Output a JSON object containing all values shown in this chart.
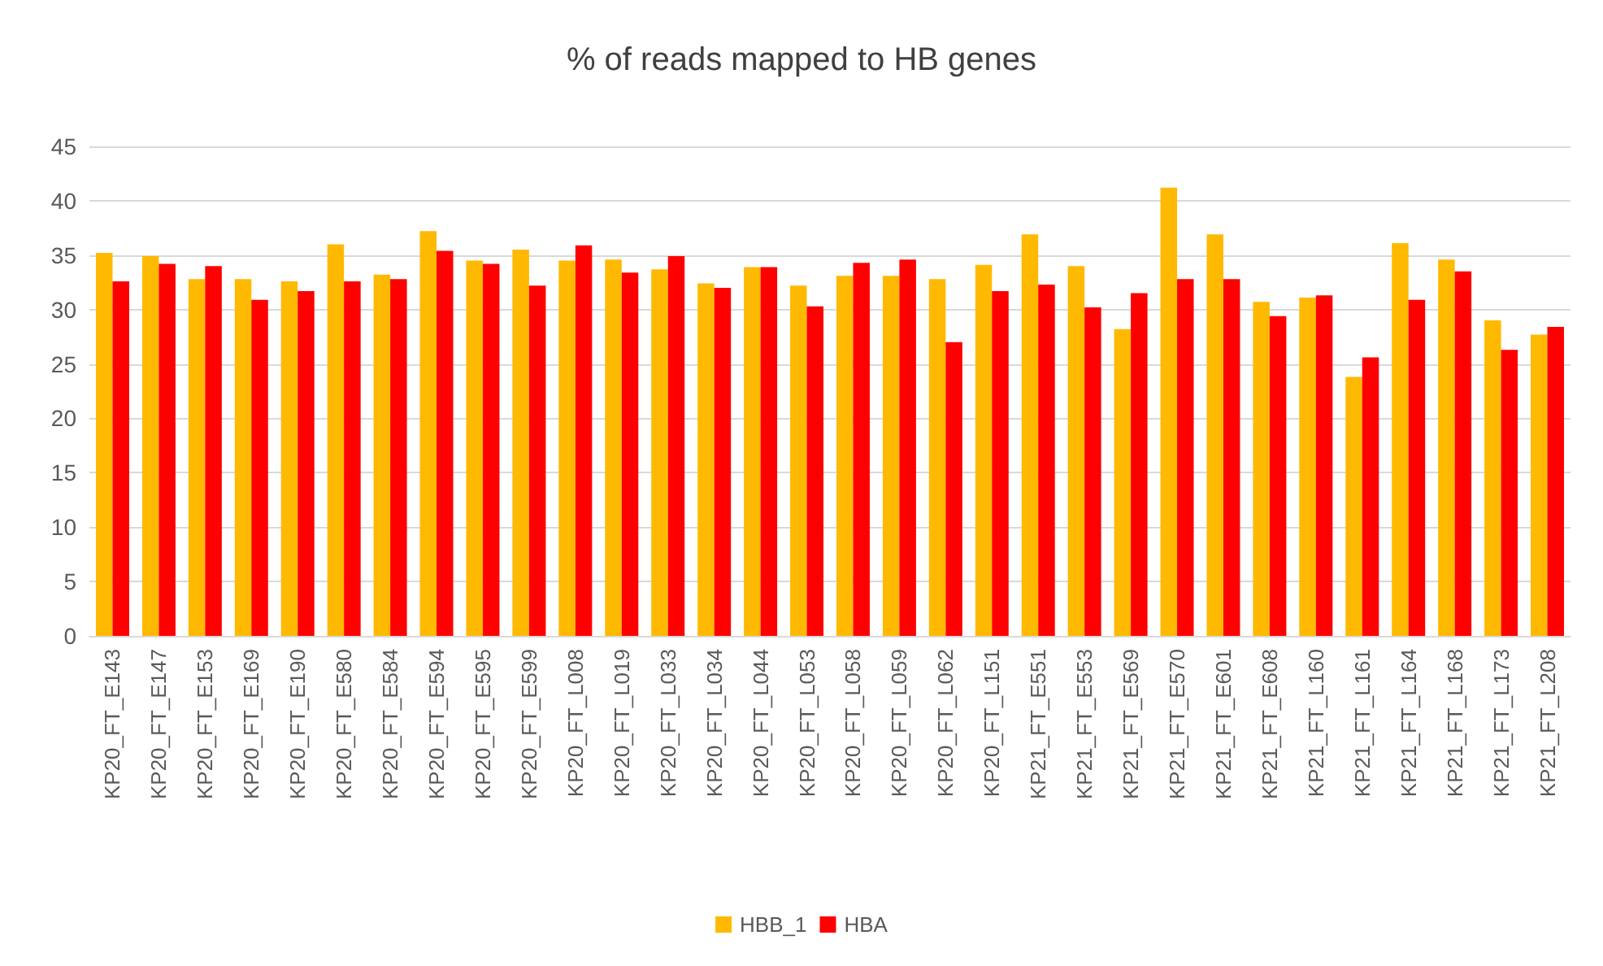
{
  "chart_data": {
    "type": "bar",
    "title": "% of reads mapped to HB genes",
    "categories": [
      "KP20_FT_E143",
      "KP20_FT_E147",
      "KP20_FT_E153",
      "KP20_FT_E169",
      "KP20_FT_E190",
      "KP20_FT_E580",
      "KP20_FT_E584",
      "KP20_FT_E594",
      "KP20_FT_E595",
      "KP20_FT_E599",
      "KP20_FT_L008",
      "KP20_FT_L019",
      "KP20_FT_L033",
      "KP20_FT_L034",
      "KP20_FT_L044",
      "KP20_FT_L053",
      "KP20_FT_L058",
      "KP20_FT_L059",
      "KP20_FT_L062",
      "KP20_FT_L151",
      "KP21_FT_E551",
      "KP21_FT_E553",
      "KP21_FT_E569",
      "KP21_FT_E570",
      "KP21_FT_E601",
      "KP21_FT_E608",
      "KP21_FT_L160",
      "KP21_FT_L161",
      "KP21_FT_L164",
      "KP21_FT_L168",
      "KP21_FT_L173",
      "KP21_FT_L208"
    ],
    "series": [
      {
        "name": "HBB_1",
        "color": "#ffb900",
        "values": [
          35.2,
          34.9,
          32.8,
          32.8,
          32.6,
          36.0,
          33.2,
          37.2,
          34.5,
          35.5,
          34.5,
          34.6,
          33.7,
          32.4,
          33.9,
          32.2,
          33.1,
          33.1,
          32.8,
          34.1,
          36.9,
          34.0,
          28.2,
          41.2,
          36.9,
          30.7,
          31.1,
          23.8,
          36.1,
          34.6,
          29.0,
          27.7
        ]
      },
      {
        "name": "HBA",
        "color": "#ff0000",
        "values": [
          32.6,
          34.2,
          34.0,
          30.9,
          31.7,
          32.6,
          32.8,
          35.4,
          34.2,
          32.2,
          35.9,
          33.4,
          34.9,
          32.0,
          33.9,
          30.3,
          34.3,
          34.6,
          27.0,
          31.7,
          32.3,
          30.2,
          31.5,
          32.8,
          32.8,
          29.4,
          31.3,
          25.6,
          30.9,
          33.5,
          26.3,
          28.4
        ]
      }
    ],
    "ylim": [
      0,
      45
    ],
    "yticks": [
      0,
      5,
      10,
      15,
      20,
      25,
      30,
      35,
      40,
      45
    ],
    "grid": "y",
    "legend": "bottom"
  }
}
